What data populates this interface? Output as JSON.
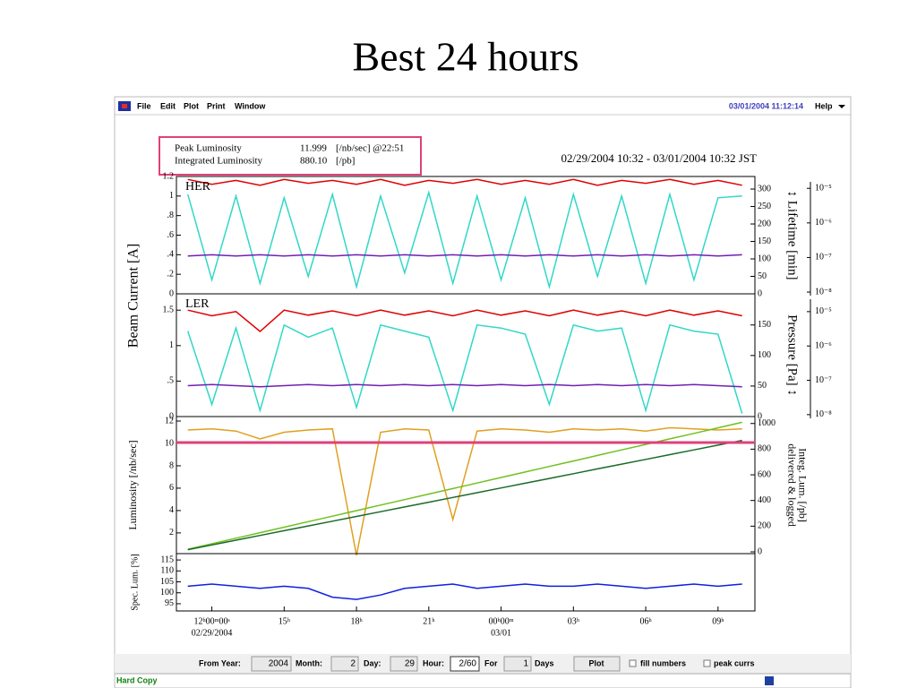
{
  "slide_title": "Best 24 hours",
  "menu": {
    "items": [
      "File",
      "Edit",
      "Plot",
      "Print",
      "Window"
    ],
    "timestamp": "03/01/2004 11:12:14",
    "help": "Help"
  },
  "summary": {
    "rows": [
      [
        "Peak Luminosity",
        "11.999",
        "[/nb/sec] @22:51"
      ],
      [
        "Integrated Luminosity",
        "880.10",
        "[/pb]"
      ]
    ]
  },
  "time_range": "02/29/2004 10:32 - 03/01/2004 10:32 JST",
  "chart_data": [
    {
      "type": "line",
      "label": "HER",
      "ylabel": "Beam Current [A]",
      "y2label": "↕ Lifetime [min]",
      "x": [
        11,
        12,
        13,
        14,
        15,
        16,
        17,
        18,
        19,
        20,
        21,
        22,
        23,
        24,
        25,
        26,
        27,
        28,
        29,
        30,
        31,
        32,
        33,
        34
      ],
      "xlim": [
        10.53,
        34.53
      ],
      "ylim": [
        0,
        1.2
      ],
      "yticks": [
        0,
        {
          "value": 0.2,
          "label": ".2"
        },
        {
          "value": 0.4,
          "label": ".4"
        },
        {
          "value": 0.6,
          "label": ".6"
        },
        {
          "value": 0.8,
          "label": ".8"
        },
        1,
        1.2
      ],
      "y2lim": [
        0,
        336
      ],
      "y2ticks": [
        0,
        50,
        100,
        150,
        200,
        250,
        300
      ],
      "y3lim": [
        8.9e-09,
        2.2e-05
      ],
      "y3scale": "log",
      "y3ticks": [
        {
          "value": 1e-05,
          "label": "10⁻⁵"
        },
        {
          "value": 1e-06,
          "label": "10⁻⁶"
        },
        {
          "value": 1e-07,
          "label": "10⁻⁷"
        },
        {
          "value": 1e-08,
          "label": "10⁻⁸"
        }
      ],
      "series": [
        {
          "color": "#e00000",
          "axis": "y",
          "values": [
            1.17,
            1.12,
            1.16,
            1.11,
            1.17,
            1.13,
            1.16,
            1.12,
            1.17,
            1.11,
            1.16,
            1.13,
            1.17,
            1.12,
            1.16,
            1.12,
            1.17,
            1.11,
            1.16,
            1.13,
            1.17,
            1.12,
            1.16,
            1.11
          ]
        },
        {
          "color": "#30d8c8",
          "axis": "y2",
          "values": [
            285,
            40,
            280,
            30,
            275,
            50,
            285,
            20,
            280,
            60,
            290,
            30,
            280,
            40,
            275,
            20,
            285,
            50,
            280,
            30,
            285,
            40,
            275,
            280
          ]
        },
        {
          "color": "#7020b0",
          "axis": "y3",
          "values": [
            1.1e-07,
            1.2e-07,
            1.1e-07,
            1.2e-07,
            1.1e-07,
            1.2e-07,
            1.1e-07,
            1.2e-07,
            1.1e-07,
            1.2e-07,
            1.1e-07,
            1.2e-07,
            1.1e-07,
            1.2e-07,
            1.1e-07,
            1.2e-07,
            1.1e-07,
            1.2e-07,
            1.1e-07,
            1.2e-07,
            1.1e-07,
            1.2e-07,
            1.1e-07,
            1.2e-07
          ]
        }
      ]
    },
    {
      "type": "line",
      "label": "LER",
      "y3label": "Pressure [Pa] ↕",
      "x": [
        11,
        12,
        13,
        14,
        15,
        16,
        17,
        18,
        19,
        20,
        21,
        22,
        23,
        24,
        25,
        26,
        27,
        28,
        29,
        30,
        31,
        32,
        33,
        34
      ],
      "xlim": [
        10.53,
        34.53
      ],
      "ylim": [
        0,
        1.73
      ],
      "yticks": [
        0,
        {
          "value": 0.5,
          "label": ".5"
        },
        1,
        1.5
      ],
      "y2lim": [
        0,
        201
      ],
      "y2ticks": [
        0,
        50,
        100,
        150
      ],
      "y3lim": [
        8.8e-09,
        3.3e-05
      ],
      "y3scale": "log",
      "y3ticks": [
        {
          "value": 1e-05,
          "label": "10⁻⁵"
        },
        {
          "value": 1e-06,
          "label": "10⁻⁶"
        },
        {
          "value": 1e-07,
          "label": "10⁻⁷"
        },
        {
          "value": 1e-08,
          "label": "10⁻⁸"
        }
      ],
      "series": [
        {
          "color": "#e00000",
          "axis": "y",
          "values": [
            1.5,
            1.42,
            1.48,
            1.2,
            1.5,
            1.43,
            1.49,
            1.42,
            1.5,
            1.43,
            1.49,
            1.42,
            1.5,
            1.43,
            1.49,
            1.42,
            1.5,
            1.43,
            1.49,
            1.42,
            1.5,
            1.43,
            1.49,
            1.42
          ]
        },
        {
          "color": "#30d8c8",
          "axis": "y2",
          "values": [
            140,
            20,
            145,
            10,
            150,
            130,
            145,
            15,
            150,
            140,
            130,
            10,
            150,
            145,
            135,
            20,
            150,
            140,
            145,
            10,
            150,
            140,
            135,
            5
          ]
        },
        {
          "color": "#7020b0",
          "axis": "y3",
          "values": [
            7e-08,
            7.5e-08,
            7e-08,
            6.5e-08,
            7e-08,
            7.5e-08,
            7e-08,
            7.5e-08,
            7e-08,
            7.5e-08,
            7e-08,
            7.5e-08,
            7e-08,
            7.5e-08,
            7e-08,
            7.5e-08,
            7e-08,
            7.5e-08,
            7e-08,
            7.5e-08,
            7e-08,
            7.5e-08,
            7e-08,
            6.5e-08
          ]
        }
      ]
    },
    {
      "type": "line",
      "ylabel": "Luminosity [/nb/sec]",
      "y2label": [
        "Integ. Lum. [/pb]",
        "delivered & logged"
      ],
      "x": [
        11,
        12,
        13,
        14,
        15,
        16,
        17,
        18,
        19,
        20,
        21,
        22,
        23,
        24,
        25,
        26,
        27,
        28,
        29,
        30,
        31,
        32,
        33,
        34
      ],
      "xlim": [
        10.53,
        34.53
      ],
      "ylim": [
        0.15,
        12.4
      ],
      "yticks": [
        2,
        4,
        6,
        8,
        10,
        12
      ],
      "y2lim": [
        -14,
        1054
      ],
      "y2ticks": [
        0,
        200,
        400,
        600,
        800,
        1000
      ],
      "series": [
        {
          "color": "#e0a020",
          "axis": "y",
          "values": [
            11.2,
            11.3,
            11.1,
            10.4,
            11.0,
            11.2,
            11.3,
            0,
            11.0,
            11.3,
            11.2,
            3.2,
            11.1,
            11.3,
            11.2,
            11.0,
            11.3,
            11.2,
            11.3,
            11.1,
            11.4,
            11.3,
            11.2,
            11.3
          ]
        },
        {
          "color": "#70c020",
          "axis": "y2",
          "values": [
            20,
            63,
            106,
            149,
            192,
            235,
            278,
            321,
            364,
            407,
            450,
            493,
            536,
            579,
            622,
            665,
            708,
            751,
            794,
            837,
            880,
            923,
            966,
            1009
          ]
        },
        {
          "color": "#1a6a2a",
          "axis": "y2",
          "values": [
            17,
            54,
            91,
            128,
            165,
            202,
            239,
            276,
            313,
            350,
            387,
            424,
            461,
            498,
            535,
            572,
            609,
            646,
            683,
            720,
            757,
            794,
            831,
            868
          ]
        }
      ]
    },
    {
      "type": "line",
      "ylabel": "Spec. Lum. [%]",
      "x": [
        11,
        12,
        13,
        14,
        15,
        16,
        17,
        18,
        19,
        20,
        21,
        22,
        23,
        24,
        25,
        26,
        27,
        28,
        29,
        30,
        31,
        32,
        33,
        34
      ],
      "xlim": [
        10.53,
        34.53
      ],
      "ylim": [
        91.7,
        117.9
      ],
      "yticks": [
        95,
        100,
        105,
        110,
        115
      ],
      "xticks": [
        {
          "value": 12,
          "label": "12ʰ00ᵐ00ˢ"
        },
        {
          "value": 15,
          "label": "15ʰ"
        },
        {
          "value": 18,
          "label": "18ʰ"
        },
        {
          "value": 21,
          "label": "21ʰ"
        },
        {
          "value": 24,
          "label": "00ʰ00ᵐ"
        },
        {
          "value": 27,
          "label": "03ʰ"
        },
        {
          "value": 30,
          "label": "06ʰ"
        },
        {
          "value": 33,
          "label": "09ʰ"
        }
      ],
      "xtick_dates": [
        {
          "value": 12,
          "label": "02/29/2004"
        },
        {
          "value": 24,
          "label": "03/01"
        }
      ],
      "series": [
        {
          "color": "#1020e0",
          "axis": "y",
          "values": [
            103,
            104,
            103,
            102,
            103,
            102,
            98,
            97,
            99,
            102,
            103,
            104,
            102,
            103,
            104,
            103,
            103,
            104,
            103,
            102,
            103,
            104,
            103,
            104
          ]
        }
      ]
    }
  ],
  "controls": {
    "from_year_label": "From Year:",
    "year": "2004",
    "month_label": "Month:",
    "month": "2",
    "day_label": "Day:",
    "day": "29",
    "hour_label": "Hour:",
    "hour": "2/60",
    "for_label": "For",
    "for": "1",
    "days_label": "Days",
    "plot": "Plot",
    "fill_numbers": "fill numbers",
    "peak_currs": "peak currs"
  },
  "status": "Hard Copy"
}
